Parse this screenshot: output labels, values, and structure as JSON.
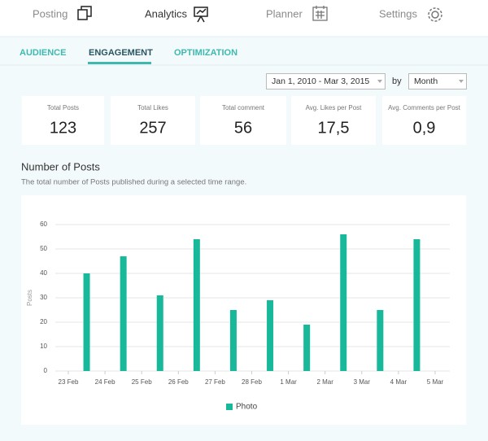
{
  "nav": [
    "Posting",
    "Analytics",
    "Planner",
    "Settings"
  ],
  "tabs": [
    "AUDIENCE",
    "ENGAGEMENT",
    "OPTIMIZATION"
  ],
  "filters": {
    "date_range": "Jan 1, 2010 - Mar 3, 2015",
    "by": "by",
    "period": "Month"
  },
  "stats": [
    {
      "label": "Total Posts",
      "value": "123"
    },
    {
      "label": "Total Likes",
      "value": "257"
    },
    {
      "label": "Total comment",
      "value": "56"
    },
    {
      "label": "Avg. Likes per Post",
      "value": "17,5"
    },
    {
      "label": "Avg. Comments per Post",
      "value": "0,9"
    }
  ],
  "chart_data": {
    "type": "bar",
    "title": "Number of Posts",
    "subtitle": "The total number of Posts published during a selected time range.",
    "y_label": "Posts",
    "categories": [
      "23 Feb",
      "24 Feb",
      "25 Feb",
      "26 Feb",
      "27 Feb",
      "28 Feb",
      "1 Mar",
      "2 Mar",
      "3 Mar",
      "4 Mar",
      "5 Mar"
    ],
    "series": [
      {
        "name": "Photo",
        "color": "#17b99a",
        "values": [
          40,
          47,
          31,
          54,
          25,
          29,
          19,
          56,
          25,
          54,
          null
        ]
      }
    ],
    "ylim": [
      0,
      60
    ],
    "yticks": [
      0,
      10,
      20,
      30,
      40,
      50,
      60
    ],
    "grid": true,
    "legend": "bottom"
  }
}
